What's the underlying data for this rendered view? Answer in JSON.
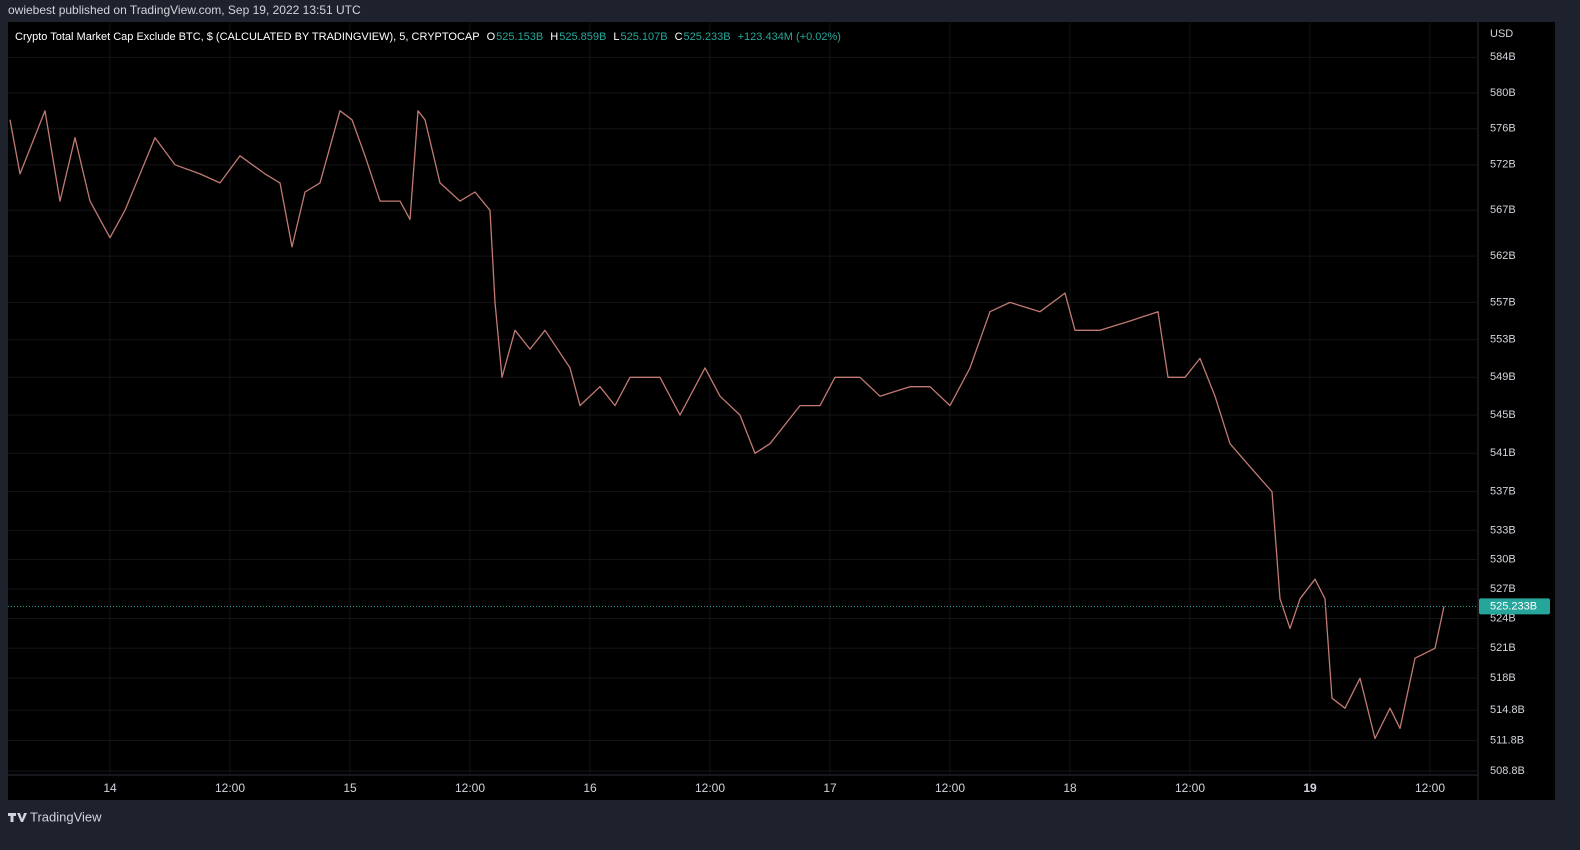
{
  "chart_data": {
    "type": "line",
    "header": "owiebest published on TradingView.com, Sep 19, 2022 13:51 UTC",
    "title": "Crypto Total Market Cap Exclude BTC, $ (CALCULATED BY TRADINGVIEW), 5, CRYPTOCAP",
    "ohlc": [
      {
        "label": "O",
        "value": "525.153B"
      },
      {
        "label": "H",
        "value": "525.859B"
      },
      {
        "label": "L",
        "value": "525.107B"
      },
      {
        "label": "C",
        "value": "525.233B"
      }
    ],
    "change": "+123.434M (+0.02%)",
    "y_unit": "USD",
    "footer": "TradingView",
    "log_scale": true,
    "grid": true,
    "last_price": {
      "value": 525.233,
      "label": "525.233B",
      "color": "#26a69a"
    },
    "xlim": [
      -10.2,
      136.8
    ],
    "xticks": [
      {
        "value": 0,
        "label": "14"
      },
      {
        "value": 12,
        "label": "12:00"
      },
      {
        "value": 24,
        "label": "15"
      },
      {
        "value": 36,
        "label": "12:00"
      },
      {
        "value": 48,
        "label": "16"
      },
      {
        "value": 60,
        "label": "12:00"
      },
      {
        "value": 72,
        "label": "17"
      },
      {
        "value": 84,
        "label": "12:00"
      },
      {
        "value": 96,
        "label": "18"
      },
      {
        "value": 108,
        "label": "12:00"
      },
      {
        "value": 120,
        "label": "19",
        "bold": true
      },
      {
        "value": 132,
        "label": "12:00"
      }
    ],
    "ylim": [
      508.4,
      588.0
    ],
    "yticks": [
      {
        "value": 584,
        "label": "584B"
      },
      {
        "value": 580,
        "label": "580B"
      },
      {
        "value": 576,
        "label": "576B"
      },
      {
        "value": 572,
        "label": "572B"
      },
      {
        "value": 567,
        "label": "567B"
      },
      {
        "value": 562,
        "label": "562B"
      },
      {
        "value": 557,
        "label": "557B"
      },
      {
        "value": 553,
        "label": "553B"
      },
      {
        "value": 549,
        "label": "549B"
      },
      {
        "value": 545,
        "label": "545B"
      },
      {
        "value": 541,
        "label": "541B"
      },
      {
        "value": 537,
        "label": "537B"
      },
      {
        "value": 533,
        "label": "533B"
      },
      {
        "value": 530,
        "label": "530B"
      },
      {
        "value": 527,
        "label": "527B"
      },
      {
        "value": 524,
        "label": "524B"
      },
      {
        "value": 521,
        "label": "521B"
      },
      {
        "value": 518,
        "label": "518B"
      },
      {
        "value": 514.8,
        "label": "514.8B"
      },
      {
        "value": 511.8,
        "label": "511.8B"
      },
      {
        "value": 508.8,
        "label": "508.8B"
      }
    ],
    "series": [
      {
        "color": "#c07a72",
        "x": [
          -10,
          -9,
          -6.5,
          -5,
          -3.5,
          -2,
          0,
          1.5,
          4.5,
          6.5,
          9,
          11,
          13,
          15.5,
          17,
          18.2,
          19.5,
          21,
          23,
          24.2,
          25.5,
          27,
          29,
          30,
          30.8,
          31.5,
          33,
          35,
          36.5,
          38,
          38.5,
          39.2,
          40.5,
          42,
          43.5,
          46,
          47,
          49,
          50.5,
          52,
          55,
          57,
          59.5,
          61,
          63,
          64.5,
          66,
          69,
          71,
          72.5,
          75,
          77,
          80,
          82,
          84,
          86,
          88,
          90,
          93,
          95.5,
          96.5,
          99,
          102,
          104.8,
          105.8,
          107.5,
          109,
          110.5,
          112,
          114.5,
          116.2,
          117,
          118,
          119,
          120.5,
          121.5,
          122.2,
          123.5,
          125,
          126.5,
          128,
          129,
          130.5,
          132.5,
          133.4
        ],
        "values": [
          577,
          571,
          578,
          568,
          575,
          568,
          564,
          567,
          575,
          572,
          571,
          570,
          573,
          571,
          570,
          563,
          569,
          570,
          578,
          577,
          573,
          568,
          568,
          566,
          578,
          577,
          570,
          568,
          569,
          567,
          557,
          549,
          554,
          552,
          554,
          550,
          546,
          548,
          546,
          549,
          549,
          545,
          550,
          547,
          545,
          541,
          542,
          546,
          546,
          549,
          549,
          547,
          548,
          548,
          546,
          550,
          556,
          557,
          556,
          558,
          554,
          554,
          555,
          556,
          549,
          549,
          551,
          547,
          542,
          539,
          537,
          526,
          523,
          526,
          528,
          526,
          516,
          515,
          518,
          512,
          515,
          513,
          520,
          521,
          525.233
        ]
      }
    ]
  }
}
